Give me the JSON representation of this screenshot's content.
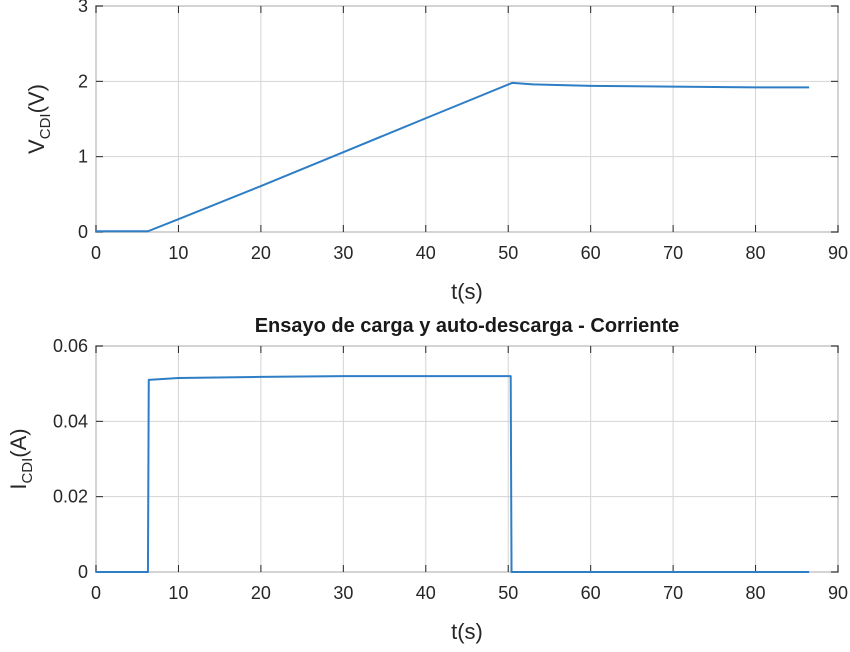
{
  "chart_data": [
    {
      "type": "line",
      "title": "",
      "xlabel": "t(s)",
      "ylabel": {
        "main": "V",
        "sub": "CDI",
        "unit": "(V)"
      },
      "xlim": [
        0,
        90
      ],
      "ylim": [
        0,
        3
      ],
      "xticks": [
        "0",
        "10",
        "20",
        "30",
        "40",
        "50",
        "60",
        "70",
        "80",
        "90"
      ],
      "yticks": [
        "0",
        "1",
        "2",
        "3"
      ],
      "grid": true,
      "color": "#2e7ec6",
      "series": [
        {
          "x": [
            0,
            6.3,
            10,
            20,
            30,
            40,
            50.5,
            53,
            60,
            70,
            80,
            86.5
          ],
          "values": [
            0.01,
            0.01,
            0.17,
            0.61,
            1.06,
            1.51,
            1.98,
            1.96,
            1.94,
            1.93,
            1.92,
            1.92
          ]
        }
      ]
    },
    {
      "type": "line",
      "title": "Ensayo de carga y auto-descarga - Corriente",
      "xlabel": "t(s)",
      "ylabel": {
        "main": "I",
        "sub": "CDI",
        "unit": "(A)"
      },
      "xlim": [
        0,
        90
      ],
      "ylim": [
        0,
        0.06
      ],
      "xticks": [
        "0",
        "10",
        "20",
        "30",
        "40",
        "50",
        "60",
        "70",
        "80",
        "90"
      ],
      "yticks": [
        "0",
        "0.02",
        "0.04",
        "0.06"
      ],
      "grid": true,
      "color": "#2e7ec6",
      "series": [
        {
          "x": [
            0,
            6.3,
            6.4,
            10,
            20,
            30,
            40,
            50.3,
            50.4,
            60,
            70,
            86.5
          ],
          "values": [
            0,
            0,
            0.051,
            0.0515,
            0.0518,
            0.052,
            0.052,
            0.052,
            0,
            0,
            0,
            0
          ]
        }
      ]
    }
  ]
}
